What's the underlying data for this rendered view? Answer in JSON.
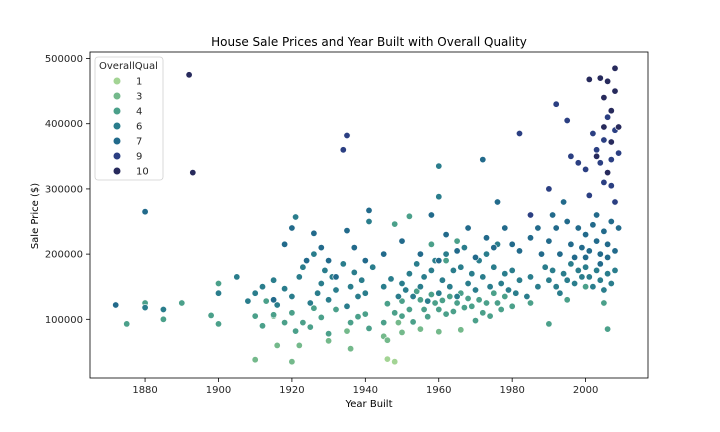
{
  "chart_data": {
    "type": "scatter",
    "title": "House Sale Prices and Year Built with Overall Quality",
    "xlabel": "Year Built",
    "ylabel": "Sale Price ($)",
    "xlim": [
      1865,
      2017
    ],
    "ylim": [
      10000,
      510000
    ],
    "x_ticks": [
      1880,
      1900,
      1920,
      1940,
      1960,
      1980,
      2000
    ],
    "y_ticks": [
      100000,
      200000,
      300000,
      400000,
      500000
    ],
    "y_tick_labels": [
      "100000",
      "200000",
      "300000",
      "400000",
      "500000"
    ],
    "grid": false,
    "legend": {
      "title": "OverallQual",
      "placement": "top-left",
      "entries": [
        {
          "label": "1",
          "color": "#a3d494"
        },
        {
          "label": "3",
          "color": "#74b98b"
        },
        {
          "label": "4",
          "color": "#4ba08a"
        },
        {
          "label": "6",
          "color": "#2a7d8c"
        },
        {
          "label": "7",
          "color": "#226a8b"
        },
        {
          "label": "9",
          "color": "#2b3f82"
        },
        {
          "label": "10",
          "color": "#272a5c"
        }
      ]
    },
    "marker_edge_color": "#ffffff",
    "series": [
      {
        "name": "1",
        "color": "#a3d494",
        "points": [
          [
            1946,
            39000
          ],
          [
            1948,
            35000
          ]
        ]
      },
      {
        "name": "3",
        "color": "#74b98b",
        "points": [
          [
            1910,
            38000
          ],
          [
            1916,
            60000
          ],
          [
            1920,
            35000
          ],
          [
            1922,
            60000
          ],
          [
            1930,
            67000
          ],
          [
            1936,
            55000
          ],
          [
            1945,
            74000
          ],
          [
            1946,
            68000
          ],
          [
            1950,
            80000
          ],
          [
            1955,
            85000
          ],
          [
            1960,
            81000
          ],
          [
            1966,
            84000
          ],
          [
            1915,
            105000
          ],
          [
            1949,
            95000
          ],
          [
            1935,
            82000
          ]
        ]
      },
      {
        "name": "4",
        "color": "#4ba08a",
        "points": [
          [
            1875,
            93000
          ],
          [
            1880,
            125000
          ],
          [
            1885,
            100000
          ],
          [
            1890,
            125000
          ],
          [
            1898,
            106000
          ],
          [
            1900,
            93000
          ],
          [
            1900,
            155000
          ],
          [
            1910,
            105000
          ],
          [
            1912,
            90000
          ],
          [
            1913,
            128000
          ],
          [
            1915,
            107000
          ],
          [
            1918,
            95000
          ],
          [
            1920,
            110000
          ],
          [
            1921,
            82000
          ],
          [
            1923,
            95000
          ],
          [
            1925,
            88000
          ],
          [
            1926,
            117000
          ],
          [
            1928,
            103000
          ],
          [
            1930,
            78000
          ],
          [
            1932,
            115000
          ],
          [
            1936,
            95000
          ],
          [
            1938,
            104000
          ],
          [
            1940,
            108000
          ],
          [
            1941,
            86000
          ],
          [
            1945,
            95000
          ],
          [
            1946,
            124000
          ],
          [
            1948,
            110000
          ],
          [
            1950,
            105000
          ],
          [
            1950,
            128000
          ],
          [
            1952,
            115000
          ],
          [
            1953,
            96000
          ],
          [
            1954,
            143000
          ],
          [
            1955,
            130000
          ],
          [
            1956,
            115000
          ],
          [
            1957,
            104000
          ],
          [
            1958,
            138000
          ],
          [
            1959,
            125000
          ],
          [
            1960,
            115000
          ],
          [
            1961,
            129000
          ],
          [
            1962,
            108000
          ],
          [
            1963,
            135000
          ],
          [
            1964,
            112000
          ],
          [
            1965,
            125000
          ],
          [
            1966,
            140000
          ],
          [
            1967,
            118000
          ],
          [
            1968,
            132000
          ],
          [
            1969,
            120000
          ],
          [
            1970,
            98000
          ],
          [
            1971,
            130000
          ],
          [
            1972,
            110000
          ],
          [
            1973,
            125000
          ],
          [
            1974,
            105000
          ],
          [
            1975,
            140000
          ],
          [
            1976,
            125000
          ],
          [
            1977,
            115000
          ],
          [
            1978,
            135000
          ],
          [
            1980,
            120000
          ],
          [
            1985,
            125000
          ],
          [
            1990,
            93000
          ],
          [
            1995,
            130000
          ],
          [
            2000,
            150000
          ],
          [
            2005,
            125000
          ],
          [
            2006,
            85000
          ],
          [
            1948,
            246000
          ],
          [
            1952,
            258000
          ],
          [
            1958,
            215000
          ],
          [
            1962,
            190000
          ],
          [
            1965,
            220000
          ]
        ]
      },
      {
        "name": "6",
        "color": "#2a7d8c",
        "points": [
          [
            1880,
            118000
          ],
          [
            1885,
            115000
          ],
          [
            1900,
            140000
          ],
          [
            1905,
            165000
          ],
          [
            1908,
            128000
          ],
          [
            1910,
            140000
          ],
          [
            1912,
            150000
          ],
          [
            1915,
            160000
          ],
          [
            1916,
            122000
          ],
          [
            1918,
            147000
          ],
          [
            1920,
            135000
          ],
          [
            1921,
            257000
          ],
          [
            1922,
            165000
          ],
          [
            1923,
            180000
          ],
          [
            1925,
            125000
          ],
          [
            1926,
            200000
          ],
          [
            1927,
            140000
          ],
          [
            1928,
            155000
          ],
          [
            1929,
            175000
          ],
          [
            1930,
            130000
          ],
          [
            1931,
            165000
          ],
          [
            1932,
            145000
          ],
          [
            1934,
            185000
          ],
          [
            1935,
            120000
          ],
          [
            1936,
            150000
          ],
          [
            1937,
            172000
          ],
          [
            1938,
            135000
          ],
          [
            1939,
            160000
          ],
          [
            1940,
            140000
          ],
          [
            1941,
            250000
          ],
          [
            1942,
            180000
          ],
          [
            1945,
            150000
          ],
          [
            1947,
            162000
          ],
          [
            1949,
            135000
          ],
          [
            1950,
            155000
          ],
          [
            1951,
            145000
          ],
          [
            1952,
            170000
          ],
          [
            1953,
            135000
          ],
          [
            1954,
            185000
          ],
          [
            1955,
            150000
          ],
          [
            1956,
            165000
          ],
          [
            1957,
            128000
          ],
          [
            1958,
            175000
          ],
          [
            1959,
            190000
          ],
          [
            1960,
            140000
          ],
          [
            1960,
            288000
          ],
          [
            1960,
            335000
          ],
          [
            1961,
            160000
          ],
          [
            1962,
            200000
          ],
          [
            1963,
            150000
          ],
          [
            1964,
            175000
          ],
          [
            1965,
            135000
          ],
          [
            1966,
            180000
          ],
          [
            1967,
            210000
          ],
          [
            1968,
            155000
          ],
          [
            1969,
            170000
          ],
          [
            1970,
            145000
          ],
          [
            1971,
            190000
          ],
          [
            1972,
            165000
          ],
          [
            1973,
            200000
          ],
          [
            1974,
            150000
          ],
          [
            1975,
            180000
          ],
          [
            1976,
            215000
          ],
          [
            1977,
            155000
          ],
          [
            1978,
            170000
          ],
          [
            1979,
            145000
          ],
          [
            1980,
            175000
          ],
          [
            1981,
            140000
          ],
          [
            1982,
            160000
          ],
          [
            1984,
            135000
          ],
          [
            1985,
            165000
          ],
          [
            1987,
            150000
          ],
          [
            1989,
            180000
          ],
          [
            1990,
            160000
          ],
          [
            1991,
            175000
          ],
          [
            1992,
            150000
          ],
          [
            1993,
            140000
          ],
          [
            1994,
            170000
          ],
          [
            1995,
            160000
          ],
          [
            1996,
            185000
          ],
          [
            1997,
            155000
          ],
          [
            1998,
            175000
          ],
          [
            1999,
            165000
          ],
          [
            2000,
            180000
          ],
          [
            2001,
            165000
          ],
          [
            2002,
            150000
          ],
          [
            2003,
            175000
          ],
          [
            2004,
            160000
          ],
          [
            2005,
            145000
          ],
          [
            2006,
            170000
          ],
          [
            2007,
            155000
          ],
          [
            2008,
            175000
          ]
        ]
      },
      {
        "name": "7",
        "color": "#226a8b",
        "points": [
          [
            1872,
            122000
          ],
          [
            1880,
            265000
          ],
          [
            1915,
            130000
          ],
          [
            1918,
            215000
          ],
          [
            1920,
            240000
          ],
          [
            1924,
            190000
          ],
          [
            1926,
            232000
          ],
          [
            1928,
            210000
          ],
          [
            1930,
            190000
          ],
          [
            1932,
            165000
          ],
          [
            1935,
            236000
          ],
          [
            1937,
            210000
          ],
          [
            1940,
            190000
          ],
          [
            1941,
            267000
          ],
          [
            1945,
            200000
          ],
          [
            1950,
            220000
          ],
          [
            1955,
            200000
          ],
          [
            1958,
            260000
          ],
          [
            1960,
            190000
          ],
          [
            1962,
            230000
          ],
          [
            1965,
            205000
          ],
          [
            1968,
            240000
          ],
          [
            1970,
            195000
          ],
          [
            1972,
            345000
          ],
          [
            1973,
            225000
          ],
          [
            1975,
            210000
          ],
          [
            1976,
            280000
          ],
          [
            1978,
            240000
          ],
          [
            1980,
            215000
          ],
          [
            1982,
            205000
          ],
          [
            1985,
            225000
          ],
          [
            1987,
            240000
          ],
          [
            1988,
            200000
          ],
          [
            1990,
            220000
          ],
          [
            1991,
            260000
          ],
          [
            1992,
            240000
          ],
          [
            1993,
            200000
          ],
          [
            1994,
            280000
          ],
          [
            1995,
            250000
          ],
          [
            1996,
            215000
          ],
          [
            1997,
            195000
          ],
          [
            1998,
            240000
          ],
          [
            1999,
            210000
          ],
          [
            2000,
            230000
          ],
          [
            2001,
            205000
          ],
          [
            2002,
            245000
          ],
          [
            2003,
            220000
          ],
          [
            2004,
            200000
          ],
          [
            2005,
            235000
          ],
          [
            2006,
            215000
          ],
          [
            2007,
            250000
          ],
          [
            2008,
            205000
          ],
          [
            2009,
            240000
          ],
          [
            2004,
            185000
          ],
          [
            2003,
            260000
          ],
          [
            2006,
            195000
          ],
          [
            2000,
            195000
          ]
        ]
      },
      {
        "name": "9",
        "color": "#2b3f82",
        "points": [
          [
            1934,
            360000
          ],
          [
            1935,
            382000
          ],
          [
            1982,
            385000
          ],
          [
            1985,
            260000
          ],
          [
            1990,
            300000
          ],
          [
            1992,
            430000
          ],
          [
            1995,
            405000
          ],
          [
            1996,
            350000
          ],
          [
            1998,
            340000
          ],
          [
            2000,
            330000
          ],
          [
            2002,
            385000
          ],
          [
            2003,
            360000
          ],
          [
            2004,
            340000
          ],
          [
            2005,
            375000
          ],
          [
            2006,
            410000
          ],
          [
            2007,
            345000
          ],
          [
            2008,
            390000
          ],
          [
            2009,
            355000
          ],
          [
            2001,
            290000
          ],
          [
            2005,
            310000
          ],
          [
            2007,
            305000
          ],
          [
            2008,
            280000
          ]
        ]
      },
      {
        "name": "10",
        "color": "#272a5c",
        "points": [
          [
            1892,
            475000
          ],
          [
            1893,
            325000
          ],
          [
            2001,
            468000
          ],
          [
            2004,
            470000
          ],
          [
            2005,
            440000
          ],
          [
            2006,
            465000
          ],
          [
            2007,
            420000
          ],
          [
            2008,
            485000
          ],
          [
            2008,
            450000
          ],
          [
            2009,
            395000
          ],
          [
            2005,
            395000
          ],
          [
            2007,
            372000
          ],
          [
            2006,
            325000
          ],
          [
            2003,
            350000
          ]
        ]
      }
    ]
  }
}
